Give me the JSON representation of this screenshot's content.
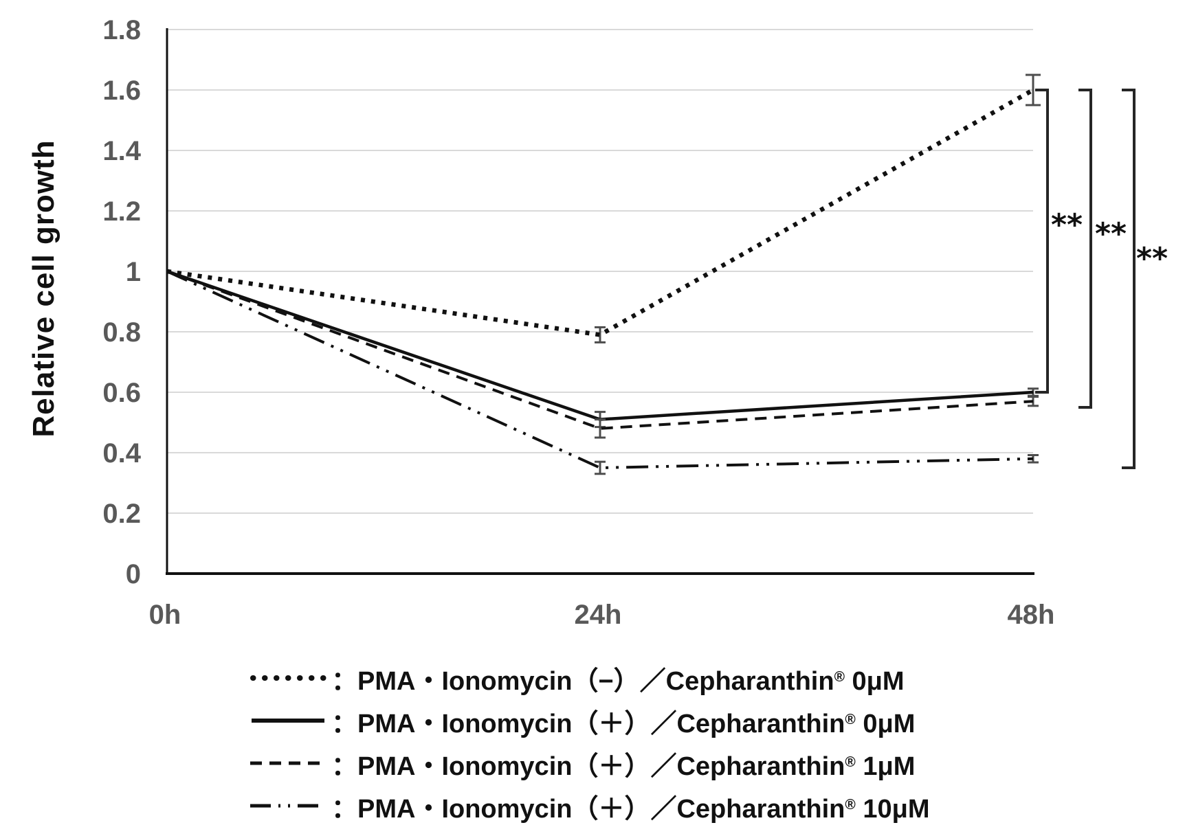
{
  "chart_data": {
    "type": "line",
    "title": "",
    "xlabel": "",
    "ylabel": "Relative cell growth",
    "x_categories": [
      "0h",
      "24h",
      "48h"
    ],
    "y_ticks": [
      0,
      0.2,
      0.4,
      0.6,
      0.8,
      1,
      1.2,
      1.4,
      1.6,
      1.8
    ],
    "y_tick_labels": [
      "0",
      "0.2",
      "0.4",
      "0.6",
      "0.8",
      "1",
      "1.2",
      "1.4",
      "1.6",
      "1.8"
    ],
    "ylim": [
      0,
      1.8
    ],
    "grid": true,
    "legend_position": "bottom",
    "series": [
      {
        "name": "PMA・Ionomycin（−）／Cepharanthin® 0μM",
        "style": "dotted",
        "values": [
          1.0,
          0.79,
          1.6
        ],
        "errors": [
          0,
          0.025,
          0.05
        ]
      },
      {
        "name": "PMA・Ionomycin（＋）／Cepharanthin® 0μM",
        "style": "solid",
        "values": [
          1.0,
          0.51,
          0.6
        ],
        "errors": [
          0,
          0.025,
          0.012
        ]
      },
      {
        "name": "PMA・Ionomycin（＋）／Cepharanthin® 1μM",
        "style": "dashed",
        "values": [
          1.0,
          0.48,
          0.57
        ],
        "errors": [
          0,
          0.03,
          0.015
        ]
      },
      {
        "name": "PMA・Ionomycin（＋）／Cepharanthin® 10μM",
        "style": "dashdotdot",
        "values": [
          1.0,
          0.35,
          0.38
        ],
        "errors": [
          0,
          0.02,
          0.012
        ]
      }
    ],
    "significance": [
      {
        "label": "**",
        "top": 1.6,
        "bottom": 0.6
      },
      {
        "label": "**",
        "top": 1.6,
        "bottom": 0.55
      },
      {
        "label": "**",
        "top": 1.6,
        "bottom": 0.35
      }
    ]
  },
  "legend": {
    "items": [
      {
        "style": "dotted",
        "prefix": "：PMA・Ionomycin（−）／Cepharanthin",
        "reg": "®",
        "suffix": " 0μM"
      },
      {
        "style": "solid",
        "prefix": "：PMA・Ionomycin（＋）／Cepharanthin",
        "reg": "®",
        "suffix": " 0μM"
      },
      {
        "style": "dashed",
        "prefix": "：PMA・Ionomycin（＋）／Cepharanthin",
        "reg": "®",
        "suffix": " 1μM"
      },
      {
        "style": "dashdotdot",
        "prefix": "：PMA・Ionomycin（＋）／Cepharanthin",
        "reg": "®",
        "suffix": " 10μM"
      }
    ]
  },
  "colors": {
    "line": "#111111",
    "grid": "#d9d9d9",
    "axis": "#111111",
    "tick_label": "#595959",
    "error_bar": "#4d4d4d",
    "bracket": "#262626"
  }
}
